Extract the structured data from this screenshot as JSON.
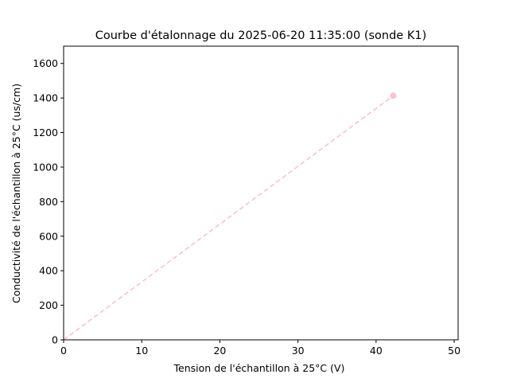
{
  "chart_data": {
    "type": "scatter",
    "title": "Courbe d'étalonnage du 2025-06-20 11:35:00 (sonde K1)",
    "xlabel": "Tension  de l'échantillon à 25°C (V)",
    "ylabel": "Conductivité de l'échantillon à 25°C (us/cm)",
    "xlim": [
      0,
      50.5
    ],
    "ylim": [
      0,
      1700
    ],
    "xticks": [
      0,
      10,
      20,
      30,
      40,
      50
    ],
    "yticks": [
      0,
      200,
      400,
      600,
      800,
      1000,
      1200,
      1400,
      1600
    ],
    "grid": false,
    "points": [
      {
        "x": 42.2,
        "y": 1413
      }
    ],
    "fit_line": {
      "from": [
        0,
        0
      ],
      "to": [
        42.2,
        1413
      ],
      "style": "dashed"
    },
    "color": "#ffc0cb"
  }
}
